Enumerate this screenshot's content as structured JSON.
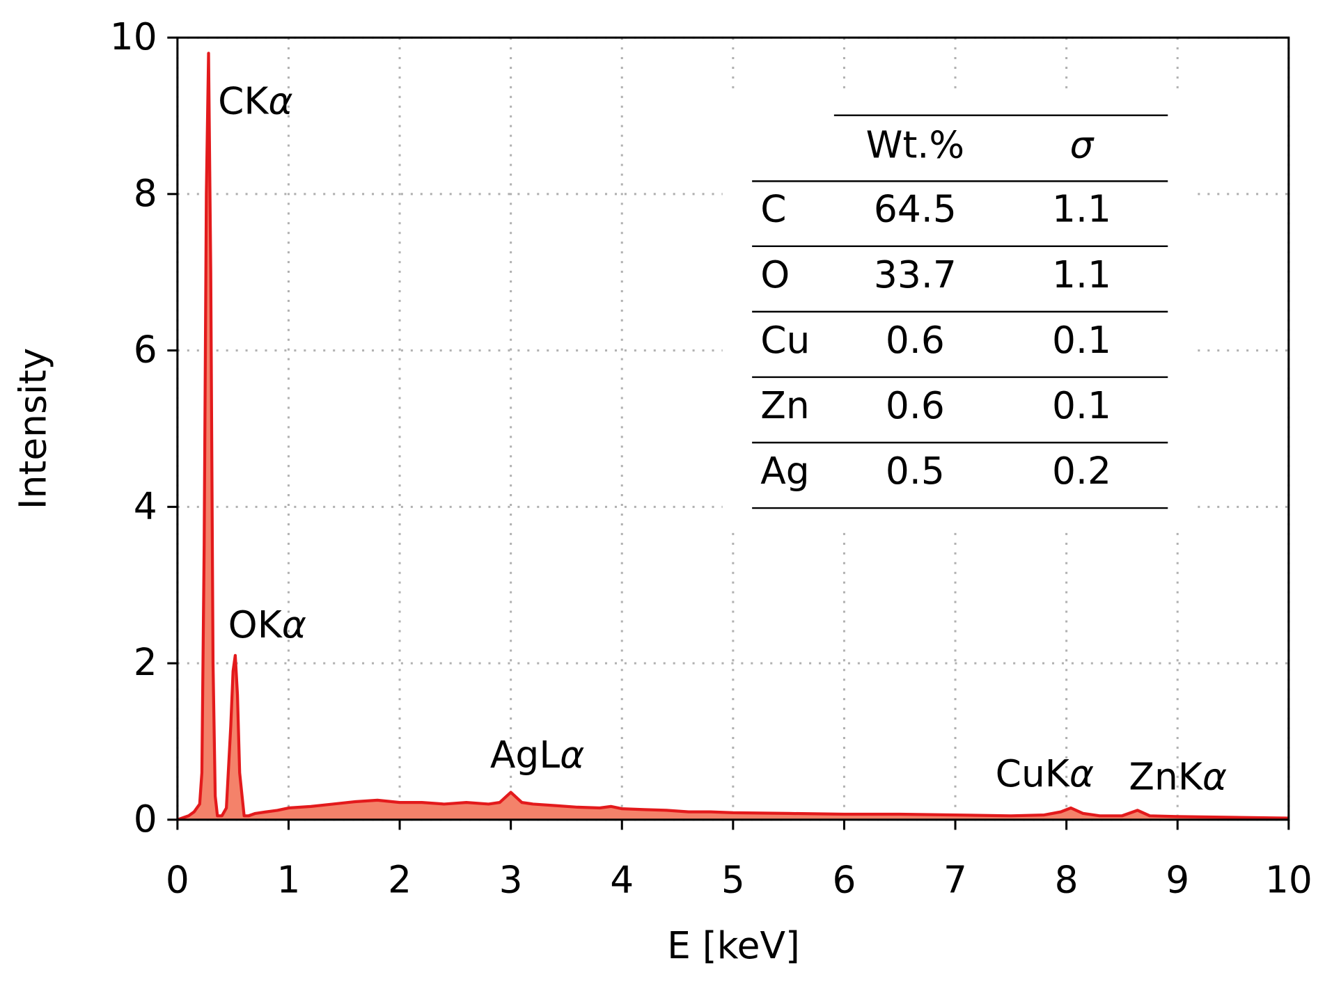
{
  "chart_data": {
    "type": "area",
    "xlabel": "E [keV]",
    "ylabel": "Intensity",
    "x": [
      0,
      0.1,
      0.15,
      0.2,
      0.22,
      0.24,
      0.26,
      0.28,
      0.3,
      0.32,
      0.34,
      0.36,
      0.4,
      0.44,
      0.48,
      0.5,
      0.52,
      0.54,
      0.56,
      0.6,
      0.64,
      0.7,
      0.8,
      0.9,
      1.0,
      1.2,
      1.4,
      1.6,
      1.8,
      2.0,
      2.2,
      2.4,
      2.6,
      2.8,
      2.9,
      3.0,
      3.1,
      3.2,
      3.4,
      3.6,
      3.8,
      3.9,
      4.0,
      4.2,
      4.4,
      4.6,
      4.8,
      5.0,
      5.5,
      6.0,
      6.5,
      7.0,
      7.5,
      7.8,
      7.95,
      8.04,
      8.15,
      8.3,
      8.5,
      8.64,
      8.75,
      9.0,
      9.5,
      10.0
    ],
    "values": [
      0,
      0.05,
      0.1,
      0.2,
      0.6,
      3.5,
      8.0,
      9.8,
      7.0,
      2.0,
      0.3,
      0.05,
      0.05,
      0.15,
      1.2,
      1.9,
      2.1,
      1.6,
      0.6,
      0.05,
      0.05,
      0.08,
      0.1,
      0.12,
      0.15,
      0.17,
      0.2,
      0.23,
      0.25,
      0.22,
      0.22,
      0.2,
      0.22,
      0.2,
      0.22,
      0.35,
      0.22,
      0.2,
      0.18,
      0.16,
      0.15,
      0.17,
      0.14,
      0.13,
      0.12,
      0.1,
      0.1,
      0.09,
      0.08,
      0.07,
      0.07,
      0.06,
      0.05,
      0.06,
      0.1,
      0.15,
      0.08,
      0.05,
      0.05,
      0.12,
      0.05,
      0.04,
      0.03,
      0.02
    ],
    "color": "#e31a1c",
    "fill_color": "#f4826a",
    "xlim": [
      0,
      10
    ],
    "xticks": [
      0,
      1,
      2,
      3,
      4,
      5,
      6,
      7,
      8,
      9,
      10
    ],
    "ylim": [
      0,
      10
    ],
    "yticks": [
      0,
      2,
      4,
      6,
      8,
      10
    ],
    "grid": true,
    "annotations": [
      {
        "element": "C",
        "line": "Kα"
      },
      {
        "element": "O",
        "line": "Kα"
      },
      {
        "element": "Ag",
        "line": "Lα"
      },
      {
        "element": "Cu",
        "line": "Kα"
      },
      {
        "element": "Zn",
        "line": "Kα"
      }
    ],
    "table": {
      "columns": [
        "Wt.%",
        "σ"
      ],
      "rows": [
        [
          "C",
          64.5,
          1.1
        ],
        [
          "O",
          33.7,
          1.1
        ],
        [
          "Cu",
          0.6,
          0.1
        ],
        [
          "Zn",
          0.6,
          0.1
        ],
        [
          "Ag",
          0.5,
          0.2
        ]
      ]
    }
  }
}
